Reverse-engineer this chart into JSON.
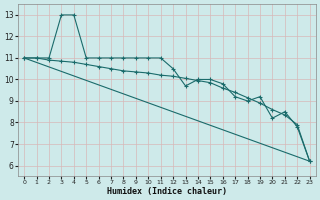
{
  "background_color": "#ceeaea",
  "grid_color": "#b8d8d8",
  "line_color": "#1a6b6b",
  "xlabel": "Humidex (Indice chaleur)",
  "xlim": [
    -0.5,
    23.5
  ],
  "ylim": [
    5.5,
    13.5
  ],
  "xticks": [
    0,
    1,
    2,
    3,
    4,
    5,
    6,
    7,
    8,
    9,
    10,
    11,
    12,
    13,
    14,
    15,
    16,
    17,
    18,
    19,
    20,
    21,
    22,
    23
  ],
  "yticks": [
    6,
    7,
    8,
    9,
    10,
    11,
    12,
    13
  ],
  "line1_x": [
    0,
    1,
    2,
    3,
    4,
    5,
    6,
    7,
    8,
    9,
    10,
    11,
    12,
    13,
    14,
    15,
    16,
    17,
    18,
    19,
    20,
    21,
    22,
    23
  ],
  "line1_y": [
    11,
    11,
    11,
    13,
    13,
    11,
    11,
    11,
    11,
    11,
    11.0,
    11.0,
    10.5,
    9.7,
    10.0,
    10.0,
    9.8,
    9.2,
    9.0,
    9.2,
    8.2,
    8.5,
    7.8,
    6.2
  ],
  "line2_x": [
    0,
    23
  ],
  "line2_y": [
    11,
    6.2
  ],
  "line3_x": [
    0,
    1,
    2,
    3,
    4,
    5,
    6,
    7,
    8,
    9,
    10,
    11,
    12,
    13,
    14,
    15,
    16,
    17,
    18,
    19,
    20,
    21,
    22,
    23
  ],
  "line3_y": [
    11,
    11,
    10.9,
    10.85,
    10.8,
    10.7,
    10.6,
    10.5,
    10.4,
    10.35,
    10.3,
    10.2,
    10.15,
    10.05,
    9.95,
    9.85,
    9.6,
    9.4,
    9.15,
    8.9,
    8.6,
    8.35,
    7.9,
    6.2
  ]
}
